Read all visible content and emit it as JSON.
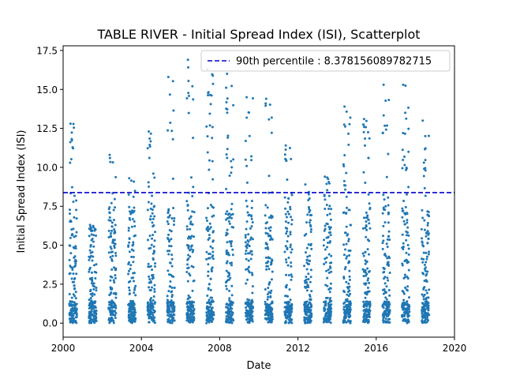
{
  "chart_data": {
    "type": "scatter",
    "title": "TABLE RIVER - Initial Spread Index (ISI), Scatterplot",
    "xlabel": "Date",
    "ylabel": "Initial Spread Index (ISI)",
    "xlim": [
      2000,
      2020
    ],
    "ylim": [
      -0.9,
      17.8
    ],
    "x_ticks": [
      2000,
      2004,
      2008,
      2012,
      2016,
      2020
    ],
    "x_tick_labels": [
      "2000",
      "2004",
      "2008",
      "2012",
      "2016",
      "2020"
    ],
    "y_ticks": [
      0.0,
      2.5,
      5.0,
      7.5,
      10.0,
      12.5,
      15.0,
      17.5
    ],
    "y_tick_labels": [
      "0.0",
      "2.5",
      "5.0",
      "7.5",
      "10.0",
      "12.5",
      "15.0",
      "17.5"
    ],
    "point_color": "#1f77b4",
    "reference_line": {
      "label": "90th percentile : 8.378156089782715",
      "value": 8.378156089782715,
      "x_range": [
        2000,
        2020
      ],
      "color": "#0000cc",
      "style": "dashed"
    },
    "legend_position": "top-right",
    "seasons": [
      {
        "start": 2000.32,
        "end": 2000.7,
        "max": 12.8
      },
      {
        "start": 2001.32,
        "end": 2001.7,
        "max": 6.3
      },
      {
        "start": 2002.32,
        "end": 2002.7,
        "max": 10.8
      },
      {
        "start": 2003.32,
        "end": 2003.7,
        "max": 9.3
      },
      {
        "start": 2004.32,
        "end": 2004.7,
        "max": 12.3
      },
      {
        "start": 2005.32,
        "end": 2005.7,
        "max": 15.8
      },
      {
        "start": 2006.32,
        "end": 2006.7,
        "max": 16.9
      },
      {
        "start": 2007.32,
        "end": 2007.7,
        "max": 16.3
      },
      {
        "start": 2008.32,
        "end": 2008.7,
        "max": 16.0
      },
      {
        "start": 2009.32,
        "end": 2009.7,
        "max": 14.5
      },
      {
        "start": 2010.32,
        "end": 2010.7,
        "max": 14.4
      },
      {
        "start": 2011.32,
        "end": 2011.7,
        "max": 11.4
      },
      {
        "start": 2012.32,
        "end": 2012.7,
        "max": 8.9
      },
      {
        "start": 2013.32,
        "end": 2013.7,
        "max": 9.4
      },
      {
        "start": 2014.32,
        "end": 2014.7,
        "max": 13.9
      },
      {
        "start": 2015.32,
        "end": 2015.7,
        "max": 13.1
      },
      {
        "start": 2016.32,
        "end": 2016.7,
        "max": 15.3
      },
      {
        "start": 2017.32,
        "end": 2017.7,
        "max": 15.3
      },
      {
        "start": 2018.32,
        "end": 2018.7,
        "max": 13.0
      }
    ]
  }
}
